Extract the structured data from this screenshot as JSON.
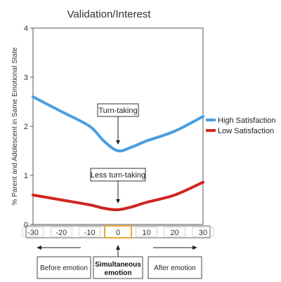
{
  "chart_data": {
    "type": "line",
    "title": "Validation/Interest",
    "ylabel": "% Parent and Adolescent in Same Emotional State",
    "xlabel": "",
    "xlim": [
      -30,
      30
    ],
    "ylim": [
      0,
      4
    ],
    "xticks": [
      -30,
      -20,
      -10,
      0,
      10,
      20,
      30
    ],
    "yticks": [
      0,
      1,
      2,
      3,
      4
    ],
    "grid": false,
    "legend_position": "right",
    "series": [
      {
        "name": "High Satisfaction",
        "color": "#4a9ee0",
        "x": [
          -30,
          -20,
          -10,
          -5,
          0,
          5,
          10,
          20,
          30
        ],
        "y": [
          2.6,
          2.3,
          2.0,
          1.7,
          1.5,
          1.58,
          1.7,
          1.9,
          2.2
        ]
      },
      {
        "name": "Low Satisfaction",
        "color": "#d0251e",
        "x": [
          -30,
          -20,
          -10,
          -5,
          0,
          5,
          10,
          20,
          30
        ],
        "y": [
          0.6,
          0.5,
          0.4,
          0.33,
          0.3,
          0.36,
          0.45,
          0.6,
          0.86
        ]
      }
    ],
    "annotations": [
      {
        "text": "Turn-taking",
        "target_series": 0,
        "target_x": 0
      },
      {
        "text": "Less turn-taking",
        "target_series": 1,
        "target_x": 0
      }
    ],
    "highlight_tick": 0,
    "highlight_color": "#e8a83a",
    "phases": {
      "before": "Before emotion",
      "simultaneous_line1": "Simultaneous",
      "simultaneous_line2": "emotion",
      "after": "After emotion"
    }
  }
}
